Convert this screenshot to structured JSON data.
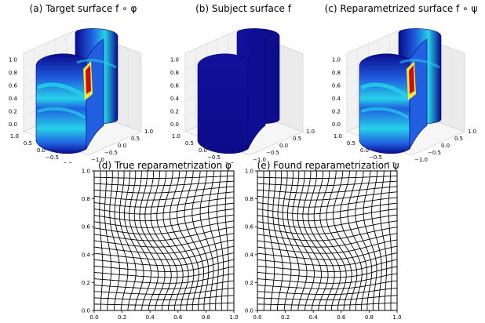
{
  "figure": {
    "panels": [
      {
        "id": "a",
        "title": "(a) Target surface f ∘ φ",
        "shading": "heat"
      },
      {
        "id": "b",
        "title": "(b) Subject surface  f",
        "shading": "flat"
      },
      {
        "id": "c",
        "title": "(c) Reparametrized surface f ∘ ψ",
        "shading": "heat"
      },
      {
        "id": "d",
        "title": "(d) True reparametrization φ"
      },
      {
        "id": "e",
        "title": "(e) Found reparametrization ψ"
      }
    ],
    "surface_axes": {
      "z_ticks": [
        "0.0",
        "0.2",
        "0.4",
        "0.6",
        "0.8",
        "1.0"
      ],
      "y_ticks": [
        "1.0",
        "0.5",
        "0.0",
        "−0.5",
        "−1.0"
      ],
      "x_ticks": [
        "−1.0",
        "−0.5",
        "0.0",
        "0.5",
        "1.0"
      ]
    },
    "grid_axes": {
      "x_ticks": [
        "0.0",
        "0.2",
        "0.4",
        "0.6",
        "0.8",
        "1.0"
      ],
      "y_ticks": [
        "0.0",
        "0.2",
        "0.4",
        "0.6",
        "0.8",
        "1.0"
      ],
      "xlim": [
        0,
        1
      ],
      "ylim": [
        0,
        1
      ]
    },
    "colors": {
      "deep_blue": "#0a0a8c",
      "mid_blue": "#1f5fe0",
      "cyan": "#26d0e8",
      "yellow": "#f2e93a",
      "red": "#c81010",
      "pane": "#f2f2f2",
      "grid_line": "#000000"
    }
  }
}
